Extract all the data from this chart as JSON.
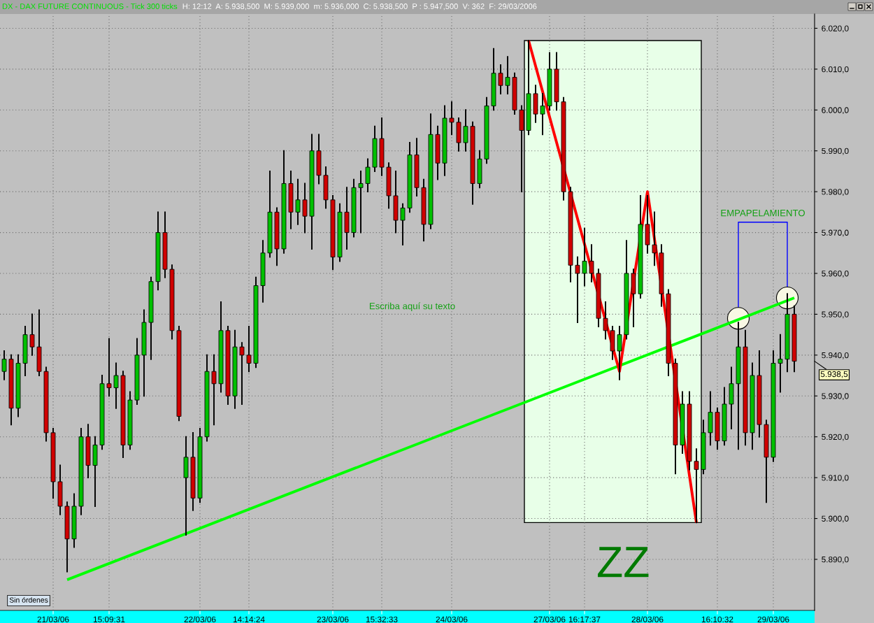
{
  "chart_data": {
    "type": "candlestick",
    "title": "DX - DAX FUTURE CONTINUOUS - Tick 300 ticks",
    "subtitle": "H: 12:12  A: 5.938,500  M: 5.939,000  m: 5.936,000  C: 5.938,500  P : 5.947,500  V: 362  F: 29/03/2006",
    "categories": [
      null,
      null,
      null,
      null,
      null,
      null,
      null,
      "21/03/06",
      null,
      null,
      null,
      null,
      null,
      null,
      null,
      "15:09:31",
      null,
      null,
      null,
      null,
      null,
      null,
      null,
      null,
      null,
      null,
      null,
      null,
      "22/03/06",
      null,
      null,
      null,
      null,
      null,
      null,
      "14:14:24",
      null,
      null,
      null,
      null,
      null,
      null,
      null,
      null,
      null,
      null,
      null,
      "23/03/06",
      null,
      null,
      null,
      null,
      null,
      null,
      "15:32:33",
      null,
      null,
      null,
      null,
      null,
      null,
      null,
      null,
      null,
      "24/03/06",
      null,
      null,
      null,
      null,
      null,
      null,
      null,
      null,
      null,
      null,
      null,
      null,
      null,
      "27/03/06",
      null,
      null,
      null,
      null,
      "16:17:37",
      null,
      null,
      null,
      null,
      null,
      null,
      null,
      null,
      "28/03/06",
      null,
      null,
      null,
      null,
      null,
      null,
      null,
      null,
      null,
      "16:10:32",
      null,
      null,
      null,
      null,
      null,
      null,
      null,
      "29/03/06",
      null,
      null,
      null
    ],
    "ohlc": [
      [
        5936,
        5941,
        5934,
        5939
      ],
      [
        5939,
        5940,
        5923,
        5927
      ],
      [
        5927,
        5940,
        5925,
        5938
      ],
      [
        5938,
        5947,
        5935,
        5945
      ],
      [
        5945,
        5950,
        5940,
        5942
      ],
      [
        5942,
        5951,
        5935,
        5936
      ],
      [
        5936,
        5937,
        5919,
        5921
      ],
      [
        5921,
        5922,
        5905,
        5909
      ],
      [
        5909,
        5913,
        5901,
        5903
      ],
      [
        5903,
        5904,
        5887,
        5895
      ],
      [
        5895,
        5906,
        5893,
        5903
      ],
      [
        5903,
        5922,
        5901,
        5920
      ],
      [
        5920,
        5923,
        5910,
        5913
      ],
      [
        5913,
        5920,
        5903,
        5918
      ],
      [
        5918,
        5935,
        5917,
        5933
      ],
      [
        5933,
        5944,
        5930,
        5932
      ],
      [
        5932,
        5938,
        5927,
        5935
      ],
      [
        5935,
        5936,
        5915,
        5918
      ],
      [
        5918,
        5931,
        5917,
        5929
      ],
      [
        5929,
        5944,
        5928,
        5940
      ],
      [
        5940,
        5951,
        5930,
        5948
      ],
      [
        5948,
        5959,
        5939,
        5958
      ],
      [
        5958,
        5975,
        5956,
        5970
      ],
      [
        5970,
        5975,
        5959,
        5961
      ],
      [
        5961,
        5962,
        5944,
        5946
      ],
      [
        5946,
        5947,
        5924,
        5925
      ],
      [
        5910,
        5920,
        5896,
        5915
      ],
      [
        5915,
        5921,
        5902,
        5905
      ],
      [
        5905,
        5922,
        5904,
        5920
      ],
      [
        5920,
        5940,
        5919,
        5936
      ],
      [
        5936,
        5940,
        5923,
        5933
      ],
      [
        5933,
        5953,
        5931,
        5946
      ],
      [
        5946,
        5947,
        5928,
        5930
      ],
      [
        5930,
        5946,
        5927,
        5942
      ],
      [
        5942,
        5943,
        5928,
        5940
      ],
      [
        5940,
        5947,
        5936,
        5938
      ],
      [
        5938,
        5959,
        5937,
        5957
      ],
      [
        5957,
        5968,
        5953,
        5965
      ],
      [
        5965,
        5985,
        5964,
        5975
      ],
      [
        5975,
        5976,
        5962,
        5966
      ],
      [
        5966,
        5990,
        5965,
        5982
      ],
      [
        5982,
        5985,
        5971,
        5975
      ],
      [
        5975,
        5983,
        5972,
        5978
      ],
      [
        5978,
        5982,
        5970,
        5974
      ],
      [
        5974,
        5994,
        5966,
        5990
      ],
      [
        5990,
        5994,
        5982,
        5984
      ],
      [
        5984,
        5986,
        5976,
        5978
      ],
      [
        5978,
        5979,
        5961,
        5964
      ],
      [
        5964,
        5977,
        5963,
        5975
      ],
      [
        5975,
        5981,
        5966,
        5970
      ],
      [
        5970,
        5983,
        5969,
        5981
      ],
      [
        5981,
        5985,
        5970,
        5982
      ],
      [
        5982,
        5988,
        5980,
        5986
      ],
      [
        5986,
        5996,
        5985,
        5993
      ],
      [
        5993,
        5998,
        5984,
        5986
      ],
      [
        5986,
        5987,
        5976,
        5979
      ],
      [
        5979,
        5985,
        5970,
        5973
      ],
      [
        5973,
        5977,
        5967,
        5976
      ],
      [
        5976,
        5992,
        5975,
        5989
      ],
      [
        5989,
        5993,
        5979,
        5981
      ],
      [
        5981,
        5983,
        5968,
        5972
      ],
      [
        5972,
        5999,
        5971,
        5994
      ],
      [
        5994,
        5996,
        5983,
        5987
      ],
      [
        5987,
        6001,
        5984,
        5998
      ],
      [
        5998,
        6002,
        5994,
        5997
      ],
      [
        5997,
        5998,
        5990,
        5992
      ],
      [
        5992,
        6000,
        5990,
        5996
      ],
      [
        5996,
        5997,
        5977,
        5982
      ],
      [
        5982,
        5990,
        5981,
        5988
      ],
      [
        5988,
        6003,
        5987,
        6001
      ],
      [
        6001,
        6015,
        6000,
        6009
      ],
      [
        6009,
        6011,
        6004,
        6006
      ],
      [
        6006,
        6013,
        6004,
        6008
      ],
      [
        6008,
        6009,
        5999,
        6000
      ],
      [
        6000,
        6001,
        5980,
        5995
      ],
      [
        5995,
        6017,
        5994,
        6004
      ],
      [
        6004,
        6006,
        5997,
        5999
      ],
      [
        5999,
        6004,
        5994,
        6001
      ],
      [
        6001,
        6014,
        6000,
        6010
      ],
      [
        6010,
        6014,
        6000,
        6002
      ],
      [
        6002,
        6003,
        5978,
        5980
      ],
      [
        5980,
        5981,
        5958,
        5962
      ],
      [
        5962,
        5964,
        5948,
        5960
      ],
      [
        5960,
        5971,
        5957,
        5963
      ],
      [
        5963,
        5967,
        5958,
        5960
      ],
      [
        5960,
        5961,
        5947,
        5949
      ],
      [
        5949,
        5953,
        5944,
        5946
      ],
      [
        5946,
        5947,
        5939,
        5941
      ],
      [
        5941,
        5947,
        5934,
        5945
      ],
      [
        5945,
        5968,
        5944,
        5960
      ],
      [
        5960,
        5961,
        5947,
        5955
      ],
      [
        5955,
        5979,
        5954,
        5972
      ],
      [
        5972,
        5979,
        5965,
        5967
      ],
      [
        5967,
        5975,
        5962,
        5965
      ],
      [
        5965,
        5967,
        5952,
        5955
      ],
      [
        5955,
        5956,
        5935,
        5938
      ],
      [
        5938,
        5939,
        5911,
        5918
      ],
      [
        5918,
        5931,
        5916,
        5928
      ],
      [
        5928,
        5931,
        5912,
        5914
      ],
      [
        5914,
        5917,
        5899,
        5912
      ],
      [
        5912,
        5924,
        5911,
        5921
      ],
      [
        5921,
        5931,
        5918,
        5926
      ],
      [
        5926,
        5927,
        5917,
        5919
      ],
      [
        5919,
        5932,
        5918,
        5928
      ],
      [
        5928,
        5937,
        5922,
        5933
      ],
      [
        5933,
        5948,
        5917,
        5942
      ],
      [
        5942,
        5946,
        5918,
        5921
      ],
      [
        5921,
        5938,
        5917,
        5935
      ],
      [
        5935,
        5941,
        5920,
        5923
      ],
      [
        5923,
        5924,
        5904,
        5915
      ],
      [
        5915,
        5941,
        5914,
        5938
      ],
      [
        5938,
        5945,
        5931,
        5939
      ],
      [
        5939,
        5955,
        5936,
        5950
      ],
      [
        5950,
        5952,
        5936,
        5938.5
      ]
    ],
    "colors": [
      "#00c000",
      "#d00000",
      "#00c000",
      "#00c000",
      "#d00000",
      "#d00000",
      "#d00000",
      "#d00000",
      "#d00000",
      "#d00000",
      "#00c000",
      "#00c000",
      "#d00000",
      "#00c000",
      "#00c000",
      "#d00000",
      "#00c000",
      "#d00000",
      "#00c000",
      "#00c000",
      "#00c000",
      "#00c000",
      "#00c000",
      "#d00000",
      "#d00000",
      "#d00000",
      "#00c000",
      "#d00000",
      "#00c000",
      "#00c000",
      "#d00000",
      "#00c000",
      "#d00000",
      "#00c000",
      "#d00000",
      "#d00000",
      "#00c000",
      "#00c000",
      "#00c000",
      "#d00000",
      "#00c000",
      "#d00000",
      "#00c000",
      "#d00000",
      "#00c000",
      "#d00000",
      "#d00000",
      "#d00000",
      "#00c000",
      "#d00000",
      "#00c000",
      "#00c000",
      "#00c000",
      "#00c000",
      "#d00000",
      "#d00000",
      "#d00000",
      "#00c000",
      "#00c000",
      "#d00000",
      "#d00000",
      "#00c000",
      "#d00000",
      "#00c000",
      "#d00000",
      "#d00000",
      "#00c000",
      "#d00000",
      "#00c000",
      "#00c000",
      "#00c000",
      "#d00000",
      "#00c000",
      "#d00000",
      "#d00000",
      "#00c000",
      "#d00000",
      "#00c000",
      "#00c000",
      "#d00000",
      "#d00000",
      "#d00000",
      "#d00000",
      "#00c000",
      "#d00000",
      "#d00000",
      "#d00000",
      "#d00000",
      "#00c000",
      "#00c000",
      "#d00000",
      "#00c000",
      "#d00000",
      "#d00000",
      "#d00000",
      "#d00000",
      "#d00000",
      "#00c000",
      "#d00000",
      "#d00000",
      "#00c000",
      "#00c000",
      "#d00000",
      "#00c000",
      "#00c000",
      "#00c000",
      "#d00000",
      "#00c000",
      "#d00000",
      "#d00000",
      "#00c000",
      "#00c000",
      "#00c000",
      "#d00000"
    ],
    "series": [
      {
        "type": "line",
        "color": "#00ff00",
        "values": [
          null,
          null,
          null,
          null,
          null,
          null,
          null,
          null,
          null,
          5885,
          null,
          null,
          null,
          null,
          null,
          null,
          null,
          null,
          null,
          null,
          null,
          null,
          null,
          null,
          null,
          null,
          null,
          null,
          null,
          null,
          null,
          null,
          null,
          null,
          null,
          null,
          null,
          null,
          null,
          null,
          null,
          null,
          null,
          null,
          null,
          null,
          null,
          null,
          null,
          null,
          null,
          null,
          null,
          null,
          null,
          null,
          null,
          null,
          null,
          null,
          null,
          null,
          null,
          null,
          null,
          null,
          null,
          null,
          null,
          null,
          null,
          null,
          null,
          null,
          null,
          null,
          null,
          null,
          null,
          null,
          null,
          null,
          null,
          null,
          null,
          null,
          null,
          null,
          null,
          null,
          null,
          null,
          null,
          null,
          null,
          null,
          null,
          null,
          null,
          null,
          null,
          null,
          null,
          null,
          null,
          null,
          null,
          null,
          null,
          null,
          null,
          null,
          null,
          5954
        ]
      },
      {
        "type": "line",
        "color": "#ff0000",
        "values": [
          null,
          null,
          null,
          null,
          null,
          null,
          null,
          null,
          null,
          null,
          null,
          null,
          null,
          null,
          null,
          null,
          null,
          null,
          null,
          null,
          null,
          null,
          null,
          null,
          null,
          null,
          null,
          null,
          null,
          null,
          null,
          null,
          null,
          null,
          null,
          null,
          null,
          null,
          null,
          null,
          null,
          null,
          null,
          null,
          null,
          null,
          null,
          null,
          null,
          null,
          null,
          null,
          null,
          null,
          null,
          null,
          null,
          null,
          null,
          null,
          null,
          null,
          null,
          null,
          null,
          null,
          null,
          null,
          null,
          null,
          null,
          null,
          null,
          null,
          null,
          6017,
          null,
          null,
          null,
          null,
          null,
          null,
          null,
          null,
          null,
          null,
          null,
          null,
          5936,
          null,
          null,
          null,
          5980,
          null,
          null,
          null,
          null,
          null,
          null,
          5899,
          null,
          null,
          null,
          null,
          null,
          null,
          null,
          null,
          null,
          null,
          null,
          null,
          null,
          null
        ]
      },
      {
        "type": "scatter",
        "color": "#f8f8e4",
        "marker": "circle",
        "values": [
          null,
          null,
          null,
          null,
          null,
          null,
          null,
          null,
          null,
          null,
          null,
          null,
          null,
          null,
          null,
          null,
          null,
          null,
          null,
          null,
          null,
          null,
          null,
          null,
          null,
          null,
          null,
          null,
          null,
          null,
          null,
          null,
          null,
          null,
          null,
          null,
          null,
          null,
          null,
          null,
          null,
          null,
          null,
          null,
          null,
          null,
          null,
          null,
          null,
          null,
          null,
          null,
          null,
          null,
          null,
          null,
          null,
          null,
          null,
          null,
          null,
          null,
          null,
          null,
          null,
          null,
          null,
          null,
          null,
          null,
          null,
          null,
          null,
          null,
          null,
          null,
          null,
          null,
          null,
          null,
          null,
          null,
          null,
          null,
          null,
          null,
          null,
          null,
          null,
          null,
          null,
          null,
          null,
          null,
          null,
          null,
          null,
          null,
          null,
          null,
          null,
          null,
          null,
          null,
          null,
          5949,
          null,
          null,
          null,
          null,
          null,
          null,
          5954,
          null
        ]
      }
    ],
    "annotations": [
      "Escriba aquí su texto",
      "EMPAPELAMIENTO",
      "ZZ",
      "Sin órdenes",
      "5.938,5"
    ],
    "ylim": [
      5877.5,
      6023.5
    ],
    "yticks": [
      {
        "value": 5890,
        "label": "5.890,0"
      },
      {
        "value": 5900,
        "label": "5.900,0"
      },
      {
        "value": 5910,
        "label": "5.910,0"
      },
      {
        "value": 5920,
        "label": "5.920,0"
      },
      {
        "value": 5930,
        "label": "5.930,0"
      },
      {
        "value": 5940,
        "label": "5.940,0"
      },
      {
        "value": 5950,
        "label": "5.950,0"
      },
      {
        "value": 5960,
        "label": "5.960,0"
      },
      {
        "value": 5970,
        "label": "5.970,0"
      },
      {
        "value": 5980,
        "label": "5.980,0"
      },
      {
        "value": 5990,
        "label": "5.990,0"
      },
      {
        "value": 6000,
        "label": "6.000,0"
      },
      {
        "value": 6010,
        "label": "6.010,0"
      },
      {
        "value": 6020,
        "label": "6.020,0"
      }
    ],
    "grid": true
  }
}
